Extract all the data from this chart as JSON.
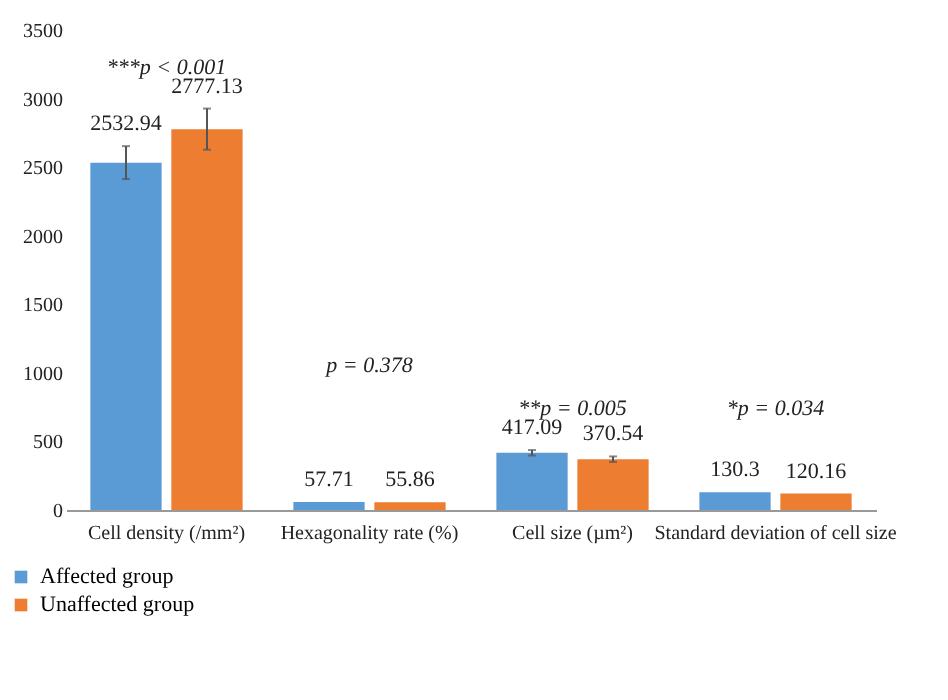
{
  "chart_data": {
    "type": "bar",
    "categories": [
      "Cell density (/mm²)",
      "Hexagonality rate (%)",
      "Cell size (µm²)",
      "Standard deviation of cell size"
    ],
    "series": [
      {
        "name": "Affected group",
        "color": "#5b9bd5",
        "values": [
          2532.94,
          57.71,
          417.09,
          130.3
        ],
        "errors": [
          120,
          null,
          20,
          null
        ]
      },
      {
        "name": "Unaffected group",
        "color": "#ed7d31",
        "values": [
          2777.13,
          55.86,
          370.54,
          120.16
        ],
        "errors": [
          150,
          null,
          20,
          null
        ]
      }
    ],
    "ylim": [
      0,
      3500
    ],
    "yticks": [
      0,
      500,
      1000,
      1500,
      2000,
      2500,
      3000,
      3500
    ],
    "data_labels": true,
    "grid": false,
    "legend": "bottom left",
    "annotations": [
      "***p < 0.001",
      "p = 0.378",
      "**p = 0.005",
      "*p = 0.034"
    ]
  }
}
